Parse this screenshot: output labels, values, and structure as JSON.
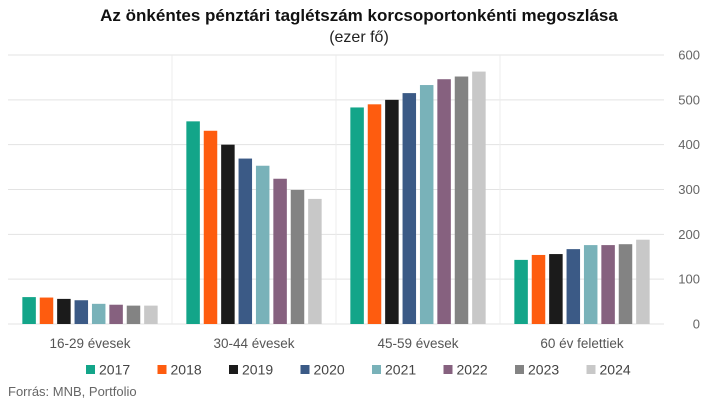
{
  "chart_data": {
    "type": "bar",
    "title": "Az önkéntes pénztári taglétszám korcsoportonkénti megoszlása",
    "subtitle": "(ezer fő)",
    "categories": [
      "16-29 évesek",
      "30-44 évesek",
      "45-59 évesek",
      "60 év felettiek"
    ],
    "series": [
      {
        "name": "2017",
        "color": "#13a589",
        "values": [
          60,
          452,
          483,
          143
        ]
      },
      {
        "name": "2018",
        "color": "#fe5c0f",
        "values": [
          59,
          431,
          490,
          154
        ]
      },
      {
        "name": "2019",
        "color": "#1b1b1b",
        "values": [
          56,
          400,
          500,
          156
        ]
      },
      {
        "name": "2020",
        "color": "#3b5a86",
        "values": [
          53,
          369,
          515,
          167
        ]
      },
      {
        "name": "2021",
        "color": "#79b2b9",
        "values": [
          45,
          353,
          533,
          176
        ]
      },
      {
        "name": "2022",
        "color": "#86617f",
        "values": [
          43,
          324,
          546,
          176
        ]
      },
      {
        "name": "2023",
        "color": "#838383",
        "values": [
          41,
          299,
          552,
          178
        ]
      },
      {
        "name": "2024",
        "color": "#c8c8c8",
        "values": [
          41,
          279,
          563,
          188
        ]
      }
    ],
    "yticks": [
      0,
      100,
      200,
      300,
      400,
      500,
      600
    ],
    "ylim": [
      0,
      600
    ],
    "y_axis_side": "right",
    "grid": true,
    "legend_position": "bottom",
    "xlabel": "",
    "ylabel": ""
  },
  "source": "Forrás: MNB, Portfolio"
}
